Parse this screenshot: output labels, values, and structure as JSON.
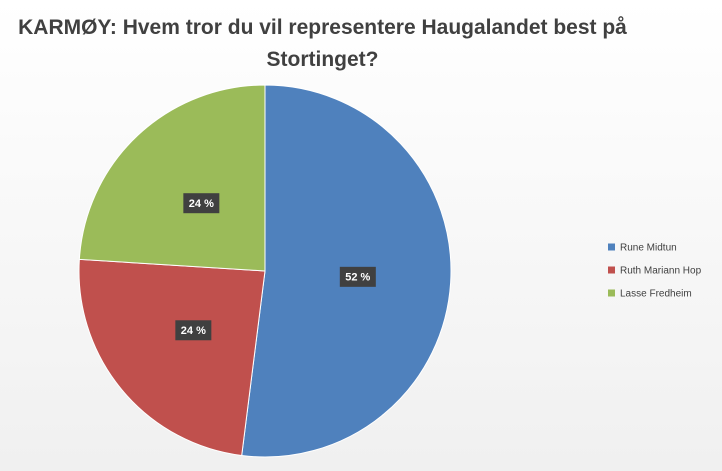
{
  "chart_data": {
    "type": "pie",
    "title": "KARMØY: Hvem tror du vil representere Haugalandet best på Stortinget?",
    "categories": [
      "Rune Midtun",
      "Ruth Mariann Hop",
      "Lasse Fredheim"
    ],
    "values": [
      52,
      24,
      24
    ],
    "value_labels": [
      "52 %",
      "24 %",
      "24 %"
    ],
    "colors": [
      "#4f81bd",
      "#c0504d",
      "#9bbb59"
    ],
    "legend": "right"
  }
}
